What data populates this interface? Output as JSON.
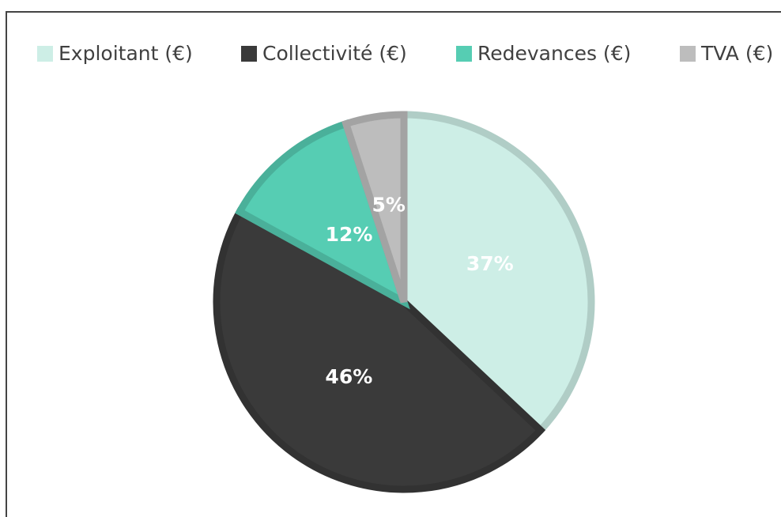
{
  "chart_data": {
    "type": "pie",
    "categories": [
      "Exploitant (€)",
      "Collectivité (€)",
      "Redevances (€)",
      "TVA (€)"
    ],
    "values": [
      37,
      46,
      12,
      5
    ],
    "value_labels": [
      "37%",
      "46%",
      "12%",
      "5%"
    ],
    "colors": [
      "#cdeee6",
      "#3a3a3a",
      "#56cdb3",
      "#bdbdbd"
    ],
    "legend": "top"
  }
}
